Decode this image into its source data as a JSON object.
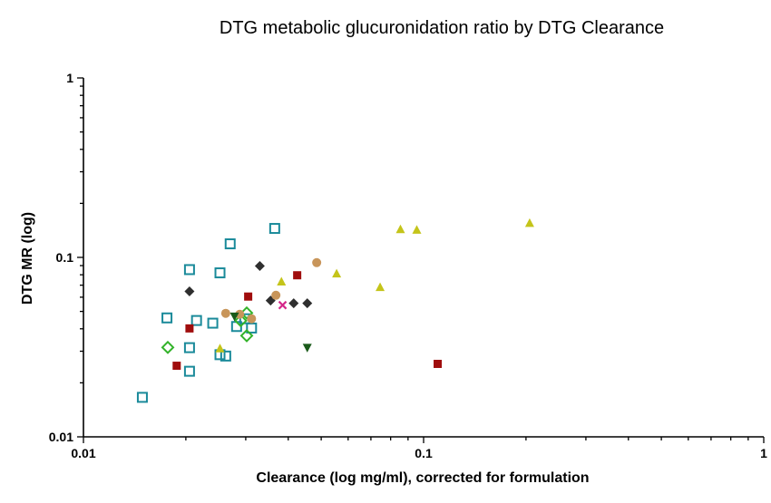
{
  "chart_data": {
    "type": "scatter",
    "title": "DTG metabolic glucuronidation ratio by DTG Clearance",
    "xlabel": "Clearance (log mg/ml), corrected for formulation",
    "ylabel": "DTG MR  (log)",
    "xscale": "log",
    "yscale": "log",
    "xlim": [
      0.01,
      1
    ],
    "ylim": [
      0.01,
      1
    ],
    "x_ticks": [
      {
        "value": 0.01,
        "label": "0.01"
      },
      {
        "value": 0.1,
        "label": "0.1"
      },
      {
        "value": 1,
        "label": "1"
      }
    ],
    "y_ticks": [
      {
        "value": 0.01,
        "label": "0.01"
      },
      {
        "value": 0.1,
        "label": "0.1"
      },
      {
        "value": 1,
        "label": "1"
      }
    ],
    "grid": false,
    "legend": "none",
    "series": [
      {
        "marker": "open-square",
        "color": "#1a8a9a",
        "points": [
          [
            0.0149,
            0.0166
          ],
          [
            0.0176,
            0.046
          ],
          [
            0.0205,
            0.0855
          ],
          [
            0.0205,
            0.0314
          ],
          [
            0.0205,
            0.0232
          ],
          [
            0.0215,
            0.0445
          ],
          [
            0.024,
            0.043
          ],
          [
            0.0252,
            0.082
          ],
          [
            0.0252,
            0.0287
          ],
          [
            0.0262,
            0.0282
          ],
          [
            0.027,
            0.119
          ],
          [
            0.0282,
            0.0412
          ],
          [
            0.0298,
            0.0455
          ],
          [
            0.0312,
            0.0404
          ],
          [
            0.0365,
            0.145
          ]
        ]
      },
      {
        "marker": "open-diamond",
        "color": "#33b32a",
        "points": [
          [
            0.0177,
            0.0315
          ],
          [
            0.029,
            0.0444
          ],
          [
            0.0302,
            0.049
          ],
          [
            0.0302,
            0.0366
          ]
        ]
      },
      {
        "marker": "filled-square",
        "color": "#a00d0d",
        "points": [
          [
            0.0188,
            0.0249
          ],
          [
            0.0205,
            0.0402
          ],
          [
            0.0305,
            0.0605
          ],
          [
            0.0425,
            0.0795
          ],
          [
            0.11,
            0.0255
          ]
        ]
      },
      {
        "marker": "filled-diamond",
        "color": "#2f2f2f",
        "points": [
          [
            0.0205,
            0.0647
          ],
          [
            0.033,
            0.0895
          ],
          [
            0.0355,
            0.0575
          ],
          [
            0.0415,
            0.0555
          ],
          [
            0.0455,
            0.0555
          ]
        ]
      },
      {
        "marker": "filled-circle",
        "color": "#c8955a",
        "points": [
          [
            0.0262,
            0.0488
          ],
          [
            0.0288,
            0.0482
          ],
          [
            0.0312,
            0.0455
          ],
          [
            0.0368,
            0.0615
          ],
          [
            0.0485,
            0.0935
          ]
        ]
      },
      {
        "marker": "filled-triangle-up",
        "color": "#c4c41a",
        "points": [
          [
            0.0252,
            0.031
          ],
          [
            0.0382,
            0.073
          ],
          [
            0.0555,
            0.081
          ],
          [
            0.0745,
            0.068
          ],
          [
            0.0855,
            0.143
          ],
          [
            0.0955,
            0.142
          ],
          [
            0.205,
            0.155
          ]
        ]
      },
      {
        "marker": "filled-triangle-down",
        "color": "#1a5a1a",
        "points": [
          [
            0.0278,
            0.047
          ],
          [
            0.0455,
            0.0315
          ]
        ]
      },
      {
        "marker": "cross",
        "color": "#d4288a",
        "points": [
          [
            0.0385,
            0.0542
          ]
        ]
      }
    ]
  }
}
